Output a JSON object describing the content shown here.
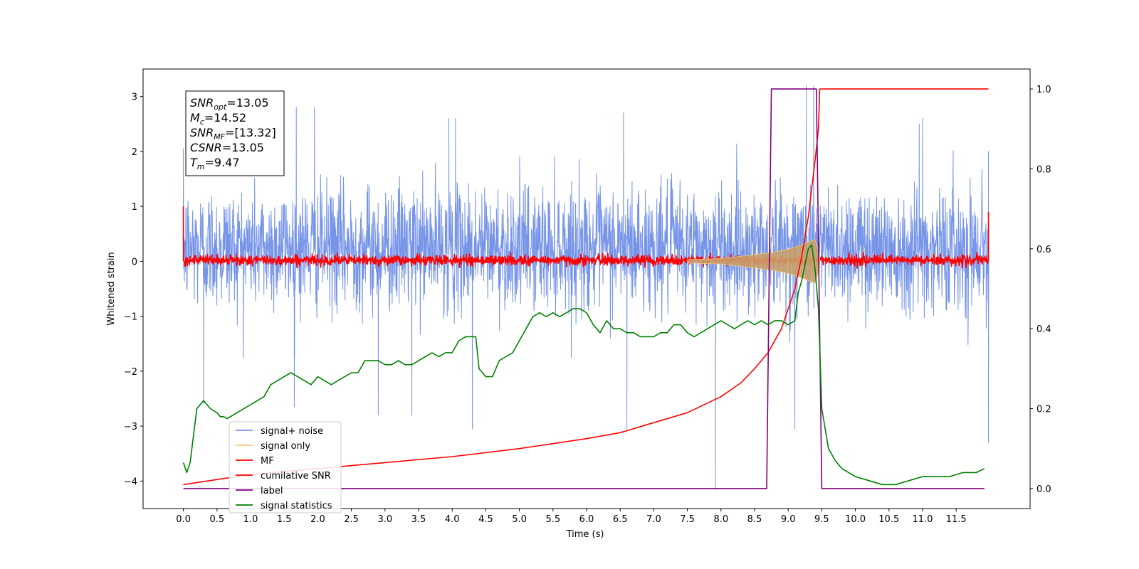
{
  "chart_data": {
    "type": "line",
    "xlabel": "Time (s)",
    "ylabel": "Whitened strain",
    "xlim": [
      -0.6,
      12.6
    ],
    "ylim": [
      -4.5,
      3.5
    ],
    "y2lim": [
      -0.05,
      1.05
    ],
    "xticks": [
      0.0,
      0.5,
      1.0,
      1.5,
      2.0,
      2.5,
      3.0,
      3.5,
      4.0,
      4.5,
      5.0,
      5.5,
      6.0,
      6.5,
      7.0,
      7.5,
      8.0,
      8.5,
      9.0,
      9.5,
      10.0,
      10.5,
      11.0,
      11.5
    ],
    "xtick_labels": [
      "0.0",
      "0.5",
      "1.0",
      "1.5",
      "2.0",
      "2.5",
      "3.0",
      "3.5",
      "4.0",
      "4.5",
      "5.0",
      "5.5",
      "6.0",
      "6.5",
      "7.0",
      "7.5",
      "8.0",
      "8.5",
      "9.0",
      "9.5",
      "10.0",
      "10.5",
      "11.0",
      "11.5"
    ],
    "yticks": [
      3,
      2,
      1,
      0,
      -1,
      -2,
      -3,
      -4
    ],
    "ytick_labels": [
      "3",
      "2",
      "1",
      "0",
      "−1",
      "−2",
      "−3",
      "−4"
    ],
    "y2ticks": [
      1.0,
      0.8,
      0.6,
      0.4,
      0.2,
      0.0
    ],
    "y2tick_labels": [
      "1.0",
      "0.8",
      "0.6",
      "0.4",
      "0.2",
      "0.0"
    ],
    "legend_position": "lower-left",
    "annotation": {
      "lines": [
        {
          "main": "SNR",
          "sub": "opt",
          "rest": "=13.05"
        },
        {
          "main": "M",
          "sub": "c",
          "rest": "=14.52"
        },
        {
          "main": "SNR",
          "sub": "MF",
          "rest": "=[13.32]"
        },
        {
          "main": "CSNR",
          "sub": "",
          "rest": "=13.05"
        },
        {
          "main": "T",
          "sub": "m",
          "rest": "=9.47"
        }
      ]
    },
    "series": [
      {
        "name": "signal+ noise",
        "color": "#7694e8",
        "axis": "left",
        "kind": "noise",
        "x_range": [
          0.0,
          11.98
        ],
        "typical_range": [
          -1.6,
          2.2
        ],
        "peaks": [
          {
            "x": 0.0,
            "y": 2.05
          },
          {
            "x": 1.68,
            "y": 2.8
          },
          {
            "x": 1.95,
            "y": 2.8
          },
          {
            "x": 3.95,
            "y": 2.6
          },
          {
            "x": 4.05,
            "y": 2.6
          },
          {
            "x": 6.55,
            "y": 2.7
          },
          {
            "x": 9.27,
            "y": 3.2
          },
          {
            "x": 9.38,
            "y": 3.2
          },
          {
            "x": 10.95,
            "y": 2.5
          },
          {
            "x": 11.0,
            "y": 2.6
          },
          {
            "x": 11.98,
            "y": 2.0
          }
        ],
        "troughs": [
          {
            "x": 0.3,
            "y": -2.6
          },
          {
            "x": 1.65,
            "y": -2.65
          },
          {
            "x": 2.9,
            "y": -2.8
          },
          {
            "x": 3.4,
            "y": -2.8
          },
          {
            "x": 4.3,
            "y": -3.05
          },
          {
            "x": 6.6,
            "y": -3.05
          },
          {
            "x": 7.92,
            "y": -4.15
          },
          {
            "x": 9.1,
            "y": -3.05
          },
          {
            "x": 11.98,
            "y": -3.3
          }
        ]
      },
      {
        "name": "signal only",
        "color": "#f4c97a",
        "axis": "left",
        "kind": "envelope",
        "x": [
          7.5,
          8.0,
          8.5,
          8.8,
          9.0,
          9.2,
          9.3,
          9.4,
          9.47
        ],
        "amplitude": [
          0.03,
          0.05,
          0.12,
          0.17,
          0.22,
          0.3,
          0.35,
          0.4,
          0.12
        ]
      },
      {
        "name": "MF",
        "color": "#ff0000",
        "axis": "left",
        "kind": "noise",
        "x_range": [
          0.0,
          11.98
        ],
        "typical_range": [
          -0.1,
          0.15
        ],
        "edge_values": {
          "start": 1.0,
          "end": 0.9
        }
      },
      {
        "name": "cumilative SNR",
        "color": "#ff0000",
        "axis": "right",
        "kind": "line",
        "x": [
          0.0,
          1.0,
          2.0,
          3.0,
          4.0,
          5.0,
          6.0,
          6.5,
          7.0,
          7.5,
          8.0,
          8.3,
          8.5,
          8.7,
          8.9,
          9.0,
          9.1,
          9.2,
          9.3,
          9.35,
          9.4,
          9.45,
          9.47,
          9.5,
          10.0,
          11.0,
          11.98
        ],
        "y": [
          0.01,
          0.035,
          0.05,
          0.065,
          0.08,
          0.1,
          0.125,
          0.14,
          0.165,
          0.19,
          0.23,
          0.265,
          0.3,
          0.34,
          0.4,
          0.45,
          0.5,
          0.58,
          0.68,
          0.75,
          0.82,
          0.9,
          1.0,
          1.0,
          1.0,
          1.0,
          1.0
        ]
      },
      {
        "name": "label",
        "color": "#800080",
        "axis": "right",
        "kind": "line",
        "x": [
          0.0,
          8.68,
          8.75,
          9.42,
          9.5,
          11.92
        ],
        "y": [
          0.0,
          0.0,
          1.0,
          1.0,
          0.0,
          0.0
        ]
      },
      {
        "name": "signal statistics",
        "color": "#008000",
        "axis": "right",
        "kind": "line",
        "x": [
          0.0,
          0.05,
          0.1,
          0.2,
          0.3,
          0.4,
          0.5,
          0.55,
          0.6,
          0.65,
          0.7,
          0.8,
          0.9,
          1.0,
          1.1,
          1.2,
          1.3,
          1.4,
          1.5,
          1.6,
          1.7,
          1.8,
          1.9,
          2.0,
          2.1,
          2.2,
          2.3,
          2.4,
          2.5,
          2.6,
          2.7,
          2.8,
          2.9,
          3.0,
          3.1,
          3.2,
          3.3,
          3.4,
          3.5,
          3.6,
          3.7,
          3.8,
          3.9,
          4.0,
          4.1,
          4.2,
          4.3,
          4.35,
          4.4,
          4.5,
          4.6,
          4.7,
          4.8,
          4.9,
          5.0,
          5.1,
          5.2,
          5.3,
          5.4,
          5.5,
          5.6,
          5.7,
          5.8,
          5.9,
          6.0,
          6.1,
          6.2,
          6.3,
          6.4,
          6.5,
          6.6,
          6.7,
          6.8,
          6.9,
          7.0,
          7.1,
          7.2,
          7.3,
          7.4,
          7.5,
          7.6,
          7.7,
          7.8,
          7.9,
          8.0,
          8.1,
          8.2,
          8.3,
          8.4,
          8.5,
          8.6,
          8.7,
          8.8,
          8.9,
          9.0,
          9.1,
          9.15,
          9.2,
          9.25,
          9.3,
          9.35,
          9.4,
          9.45,
          9.5,
          9.6,
          9.7,
          9.8,
          9.9,
          10.0,
          10.2,
          10.4,
          10.6,
          10.8,
          11.0,
          11.2,
          11.4,
          11.6,
          11.8,
          11.92
        ],
        "y": [
          0.065,
          0.04,
          0.065,
          0.2,
          0.22,
          0.2,
          0.19,
          0.18,
          0.18,
          0.175,
          0.18,
          0.19,
          0.2,
          0.21,
          0.22,
          0.23,
          0.26,
          0.27,
          0.28,
          0.29,
          0.28,
          0.27,
          0.26,
          0.28,
          0.27,
          0.26,
          0.27,
          0.28,
          0.29,
          0.29,
          0.32,
          0.32,
          0.32,
          0.31,
          0.31,
          0.32,
          0.31,
          0.31,
          0.32,
          0.33,
          0.34,
          0.33,
          0.34,
          0.34,
          0.37,
          0.38,
          0.38,
          0.38,
          0.3,
          0.28,
          0.28,
          0.32,
          0.33,
          0.34,
          0.37,
          0.4,
          0.43,
          0.44,
          0.43,
          0.44,
          0.43,
          0.44,
          0.45,
          0.45,
          0.44,
          0.41,
          0.39,
          0.42,
          0.4,
          0.4,
          0.39,
          0.39,
          0.38,
          0.38,
          0.38,
          0.39,
          0.39,
          0.41,
          0.41,
          0.39,
          0.38,
          0.39,
          0.4,
          0.41,
          0.42,
          0.41,
          0.4,
          0.41,
          0.42,
          0.41,
          0.42,
          0.41,
          0.42,
          0.42,
          0.41,
          0.42,
          0.49,
          0.52,
          0.56,
          0.6,
          0.61,
          0.55,
          0.45,
          0.2,
          0.1,
          0.07,
          0.05,
          0.04,
          0.03,
          0.02,
          0.01,
          0.01,
          0.02,
          0.03,
          0.03,
          0.03,
          0.04,
          0.04,
          0.05
        ]
      }
    ]
  }
}
